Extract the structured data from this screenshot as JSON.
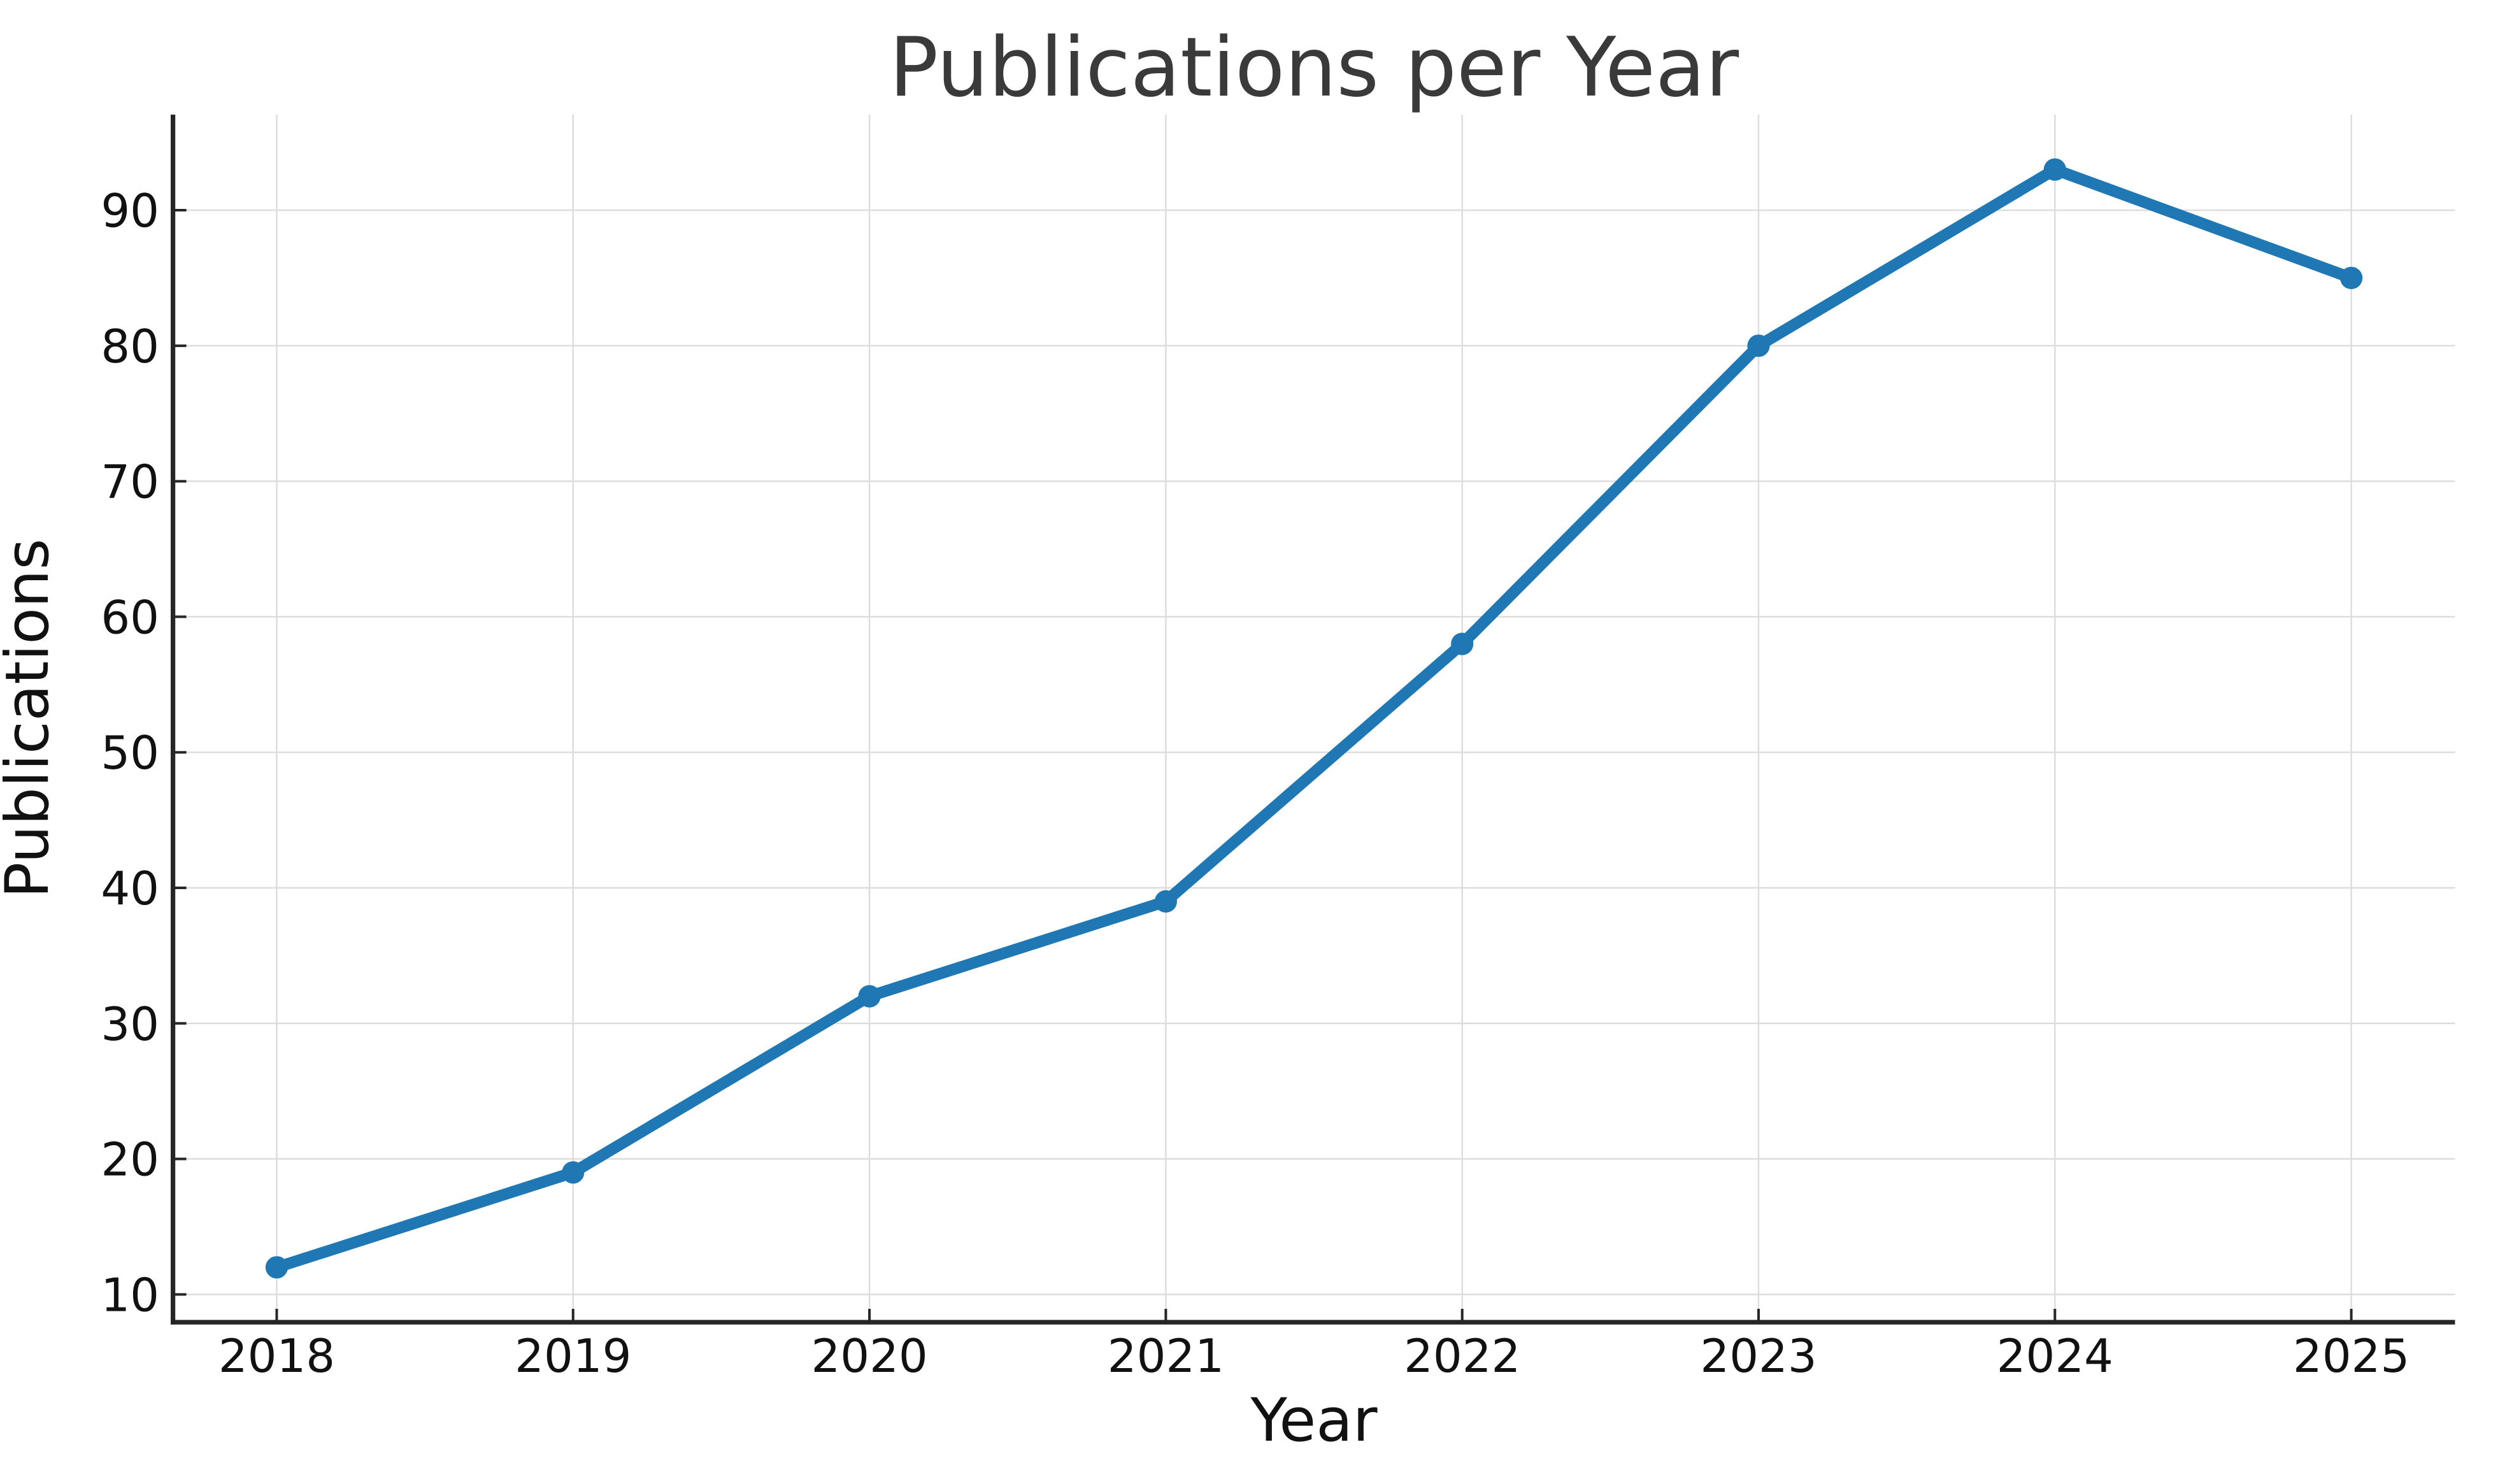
{
  "chart_data": {
    "type": "line",
    "title": "Publications per Year",
    "xlabel": "Year",
    "ylabel": "Publications",
    "x": [
      2018,
      2019,
      2020,
      2021,
      2022,
      2023,
      2024,
      2025
    ],
    "values": [
      12,
      19,
      32,
      39,
      58,
      80,
      93,
      85
    ],
    "xtick_labels": [
      "2018",
      "2019",
      "2020",
      "2021",
      "2022",
      "2023",
      "2024",
      "2025"
    ],
    "yticks": [
      10,
      20,
      30,
      40,
      50,
      60,
      70,
      80,
      90
    ],
    "xlim": [
      2017.65,
      2025.35
    ],
    "ylim": [
      7.95,
      97.05
    ],
    "grid": true,
    "legend_position": "none",
    "marker": "circle",
    "colors": {
      "line": "#1f77b4",
      "marker": "#1f77b4",
      "grid": "#dcdcdc",
      "spine": "#262626",
      "tick": "#262626",
      "tick_label": "#111111",
      "axis_label": "#111111",
      "title": "#3a3a3a",
      "background": "#ffffff"
    }
  }
}
